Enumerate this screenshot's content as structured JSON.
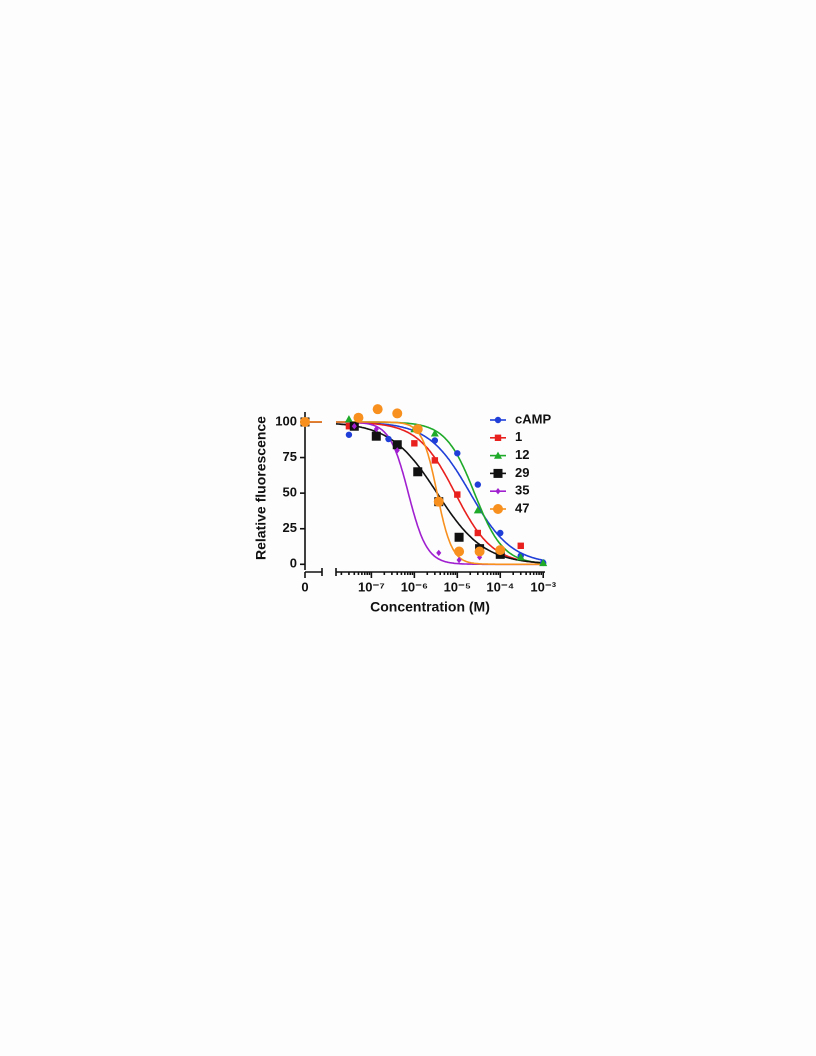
{
  "chart_data": {
    "type": "scatter",
    "x_label": "Concentration (M)",
    "y_label": "Relative fluorescence",
    "xscale": "log",
    "xlim": [
      1.5e-08,
      0.0011
    ],
    "ylim": [
      -4,
      107
    ],
    "xticks": [
      0,
      {
        "value": 1e-07,
        "label": "10⁻⁷"
      },
      {
        "value": 1e-06,
        "label": "10⁻⁶"
      },
      {
        "value": 1e-05,
        "label": "10⁻⁵"
      },
      {
        "value": 0.0001,
        "label": "10⁻⁴"
      },
      {
        "value": 0.001,
        "label": "10⁻³"
      }
    ],
    "yticks": [
      0,
      25,
      50,
      75,
      100
    ],
    "legend": "upper right",
    "series": [
      {
        "name": "cAMP",
        "color": "#1f3fd8",
        "marker": "circle",
        "marker_size": 3.2,
        "x": [
          0,
          3e-08,
          2.5e-07,
          3e-06,
          1e-05,
          3e-05,
          0.0001,
          0.0003,
          0.001
        ],
        "values": [
          100,
          91,
          88,
          87,
          78,
          56,
          22,
          6,
          1
        ],
        "fit": {
          "top": 100,
          "bottom": 0,
          "log_ic50": -4.7,
          "hill": 0.9
        }
      },
      {
        "name": "1",
        "color": "#e8201e",
        "marker": "square",
        "marker_size": 3.2,
        "x": [
          0,
          3e-08,
          1e-06,
          3e-06,
          1e-05,
          3e-05,
          0.0001,
          0.0003
        ],
        "values": [
          100,
          97,
          85,
          73,
          49,
          22,
          9,
          13
        ],
        "fit": {
          "top": 100,
          "bottom": 0,
          "log_ic50": -5.05,
          "hill": 1.0
        }
      },
      {
        "name": "12",
        "color": "#1faa2a",
        "marker": "triangle",
        "marker_size": 4,
        "x": [
          0,
          3e-08,
          1e-06,
          3e-06,
          3e-05,
          0.0001,
          0.0003,
          0.001
        ],
        "values": [
          100,
          102,
          95,
          92,
          38,
          10,
          5,
          1
        ],
        "fit": {
          "top": 100,
          "bottom": 0,
          "log_ic50": -4.6,
          "hill": 1.3
        }
      },
      {
        "name": "29",
        "color": "#111111",
        "marker": "square",
        "marker_size": 4.5,
        "x": [
          0,
          4e-08,
          1.3e-07,
          4e-07,
          1.2e-06,
          3.7e-06,
          1.1e-05,
          3.3e-05,
          0.0001
        ],
        "values": [
          100,
          97,
          90,
          84,
          65,
          44,
          19,
          11,
          7
        ],
        "fit": {
          "top": 100,
          "bottom": 0,
          "log_ic50": -5.47,
          "hill": 0.8
        }
      },
      {
        "name": "35",
        "color": "#a020d0",
        "marker": "diamond",
        "marker_size": 3.2,
        "x": [
          0,
          4e-08,
          1.3e-07,
          4e-07,
          3.7e-06,
          1.1e-05,
          3.3e-05
        ],
        "values": [
          100,
          97,
          95,
          80,
          8,
          3,
          5
        ],
        "fit": {
          "top": 100,
          "bottom": 0,
          "log_ic50": -6.14,
          "hill": 2.0
        }
      },
      {
        "name": "47",
        "color": "#f7901e",
        "marker": "circle",
        "marker_size": 5,
        "x": [
          0,
          5e-08,
          1.4e-07,
          4e-07,
          1.2e-06,
          3.7e-06,
          1.1e-05,
          3.3e-05,
          0.0001
        ],
        "values": [
          100,
          103,
          109,
          106,
          95,
          44,
          9,
          9,
          10
        ],
        "fit": {
          "top": 100,
          "bottom": 0,
          "log_ic50": -5.47,
          "hill": 2.5
        }
      }
    ]
  }
}
